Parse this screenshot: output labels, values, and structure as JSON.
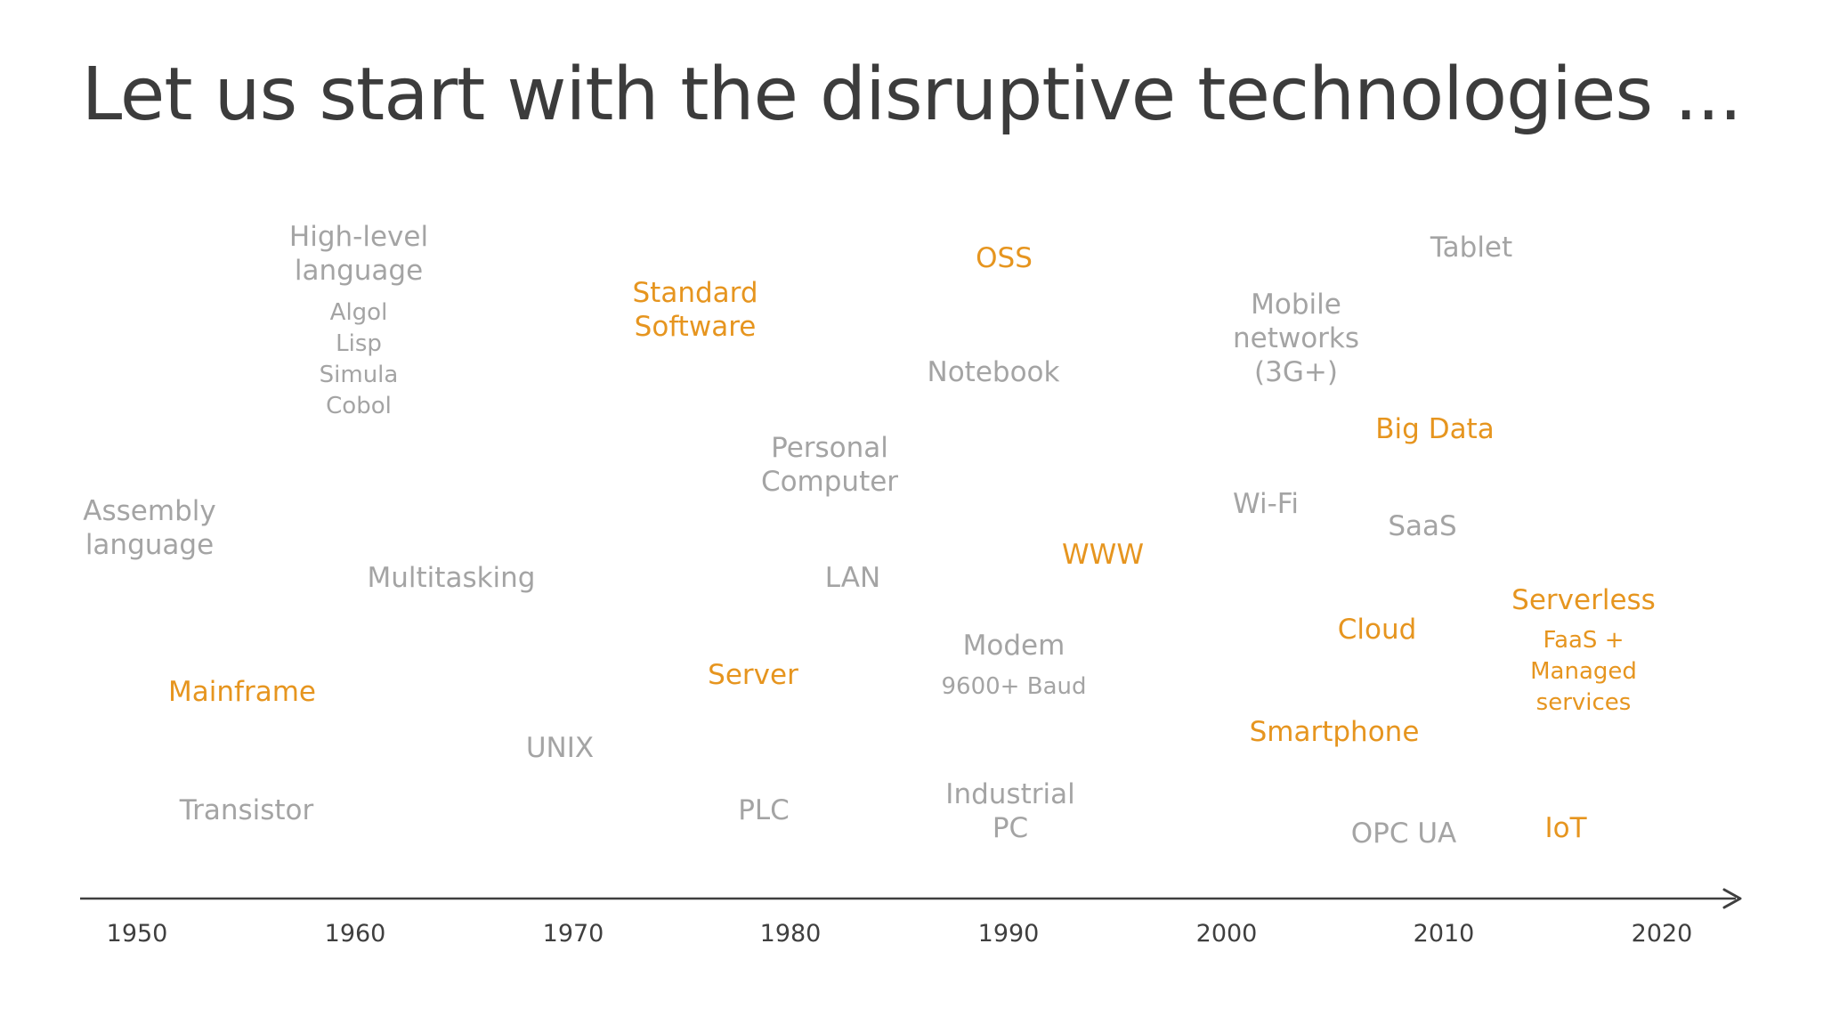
{
  "title": "Let us start with the disruptive technologies ...",
  "axis": {
    "years": [
      "1950",
      "1960",
      "1970",
      "1980",
      "1990",
      "2000",
      "2010",
      "2020"
    ]
  },
  "colors": {
    "highlight": "#e6951f",
    "muted": "#a4a4a4",
    "text": "#3c3c3c"
  },
  "items": [
    {
      "label": [
        "High-level",
        "language"
      ],
      "color": "gray"
    },
    {
      "label": [
        "Algol",
        "Lisp",
        "Simula",
        "Cobol"
      ],
      "color": "gray"
    },
    {
      "label": [
        "Standard",
        "Software"
      ],
      "color": "orange"
    },
    {
      "label": [
        "OSS"
      ],
      "color": "orange"
    },
    {
      "label": [
        "Tablet"
      ],
      "color": "gray"
    },
    {
      "label": [
        "Mobile",
        "networks",
        "(3G+)"
      ],
      "color": "gray"
    },
    {
      "label": [
        "Notebook"
      ],
      "color": "gray"
    },
    {
      "label": [
        "Big Data"
      ],
      "color": "orange"
    },
    {
      "label": [
        "Personal",
        "Computer"
      ],
      "color": "gray"
    },
    {
      "label": [
        "Assembly",
        "language"
      ],
      "color": "gray"
    },
    {
      "label": [
        "Wi-Fi"
      ],
      "color": "gray"
    },
    {
      "label": [
        "SaaS"
      ],
      "color": "gray"
    },
    {
      "label": [
        "WWW"
      ],
      "color": "orange"
    },
    {
      "label": [
        "Multitasking"
      ],
      "color": "gray"
    },
    {
      "label": [
        "LAN"
      ],
      "color": "gray"
    },
    {
      "label": [
        "Serverless"
      ],
      "color": "orange"
    },
    {
      "label": [
        "Cloud"
      ],
      "color": "orange"
    },
    {
      "label": [
        "FaaS +",
        "Managed",
        "services"
      ],
      "color": "orange"
    },
    {
      "label": [
        "Modem"
      ],
      "color": "gray"
    },
    {
      "label": [
        "9600+ Baud"
      ],
      "color": "gray"
    },
    {
      "label": [
        "Server"
      ],
      "color": "orange"
    },
    {
      "label": [
        "Mainframe"
      ],
      "color": "orange"
    },
    {
      "label": [
        "Smartphone"
      ],
      "color": "orange"
    },
    {
      "label": [
        "UNIX"
      ],
      "color": "gray"
    },
    {
      "label": [
        "Industrial",
        "PC"
      ],
      "color": "gray"
    },
    {
      "label": [
        "Transistor"
      ],
      "color": "gray"
    },
    {
      "label": [
        "PLC"
      ],
      "color": "gray"
    },
    {
      "label": [
        "OPC UA"
      ],
      "color": "gray"
    },
    {
      "label": [
        "IoT"
      ],
      "color": "orange"
    }
  ]
}
